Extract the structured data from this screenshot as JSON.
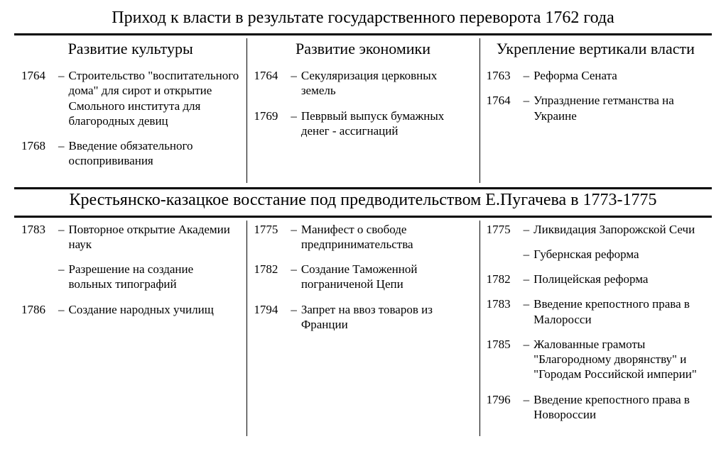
{
  "section1": {
    "title": "Приход к власти в результате государственного переворота 1762 года"
  },
  "section2": {
    "title": "Крестьянско-казацкое восстание под предводительством Е.Пугачева в 1773-1775"
  },
  "cols": {
    "culture": {
      "head": "Развитие культуры"
    },
    "economy": {
      "head": "Развитие экономики"
    },
    "power": {
      "head": "Укрепление вертикали власти"
    }
  },
  "s1": {
    "culture": [
      {
        "year": "1764",
        "text": "Строительство \"воспитательного дома\" для сирот и открытие Смольного института для благородных девиц"
      },
      {
        "year": "1768",
        "text": "Введение обязательного оспопрививания"
      }
    ],
    "economy": [
      {
        "year": "1764",
        "text": "Секуляризация церковных земель"
      },
      {
        "year": "1769",
        "text": "Певрвый выпуск бумажных денег - ассигнаций"
      }
    ],
    "power": [
      {
        "year": "1763",
        "text": "Реформа Сената"
      },
      {
        "year": "1764",
        "text": "Упразднение гетманства на Украине"
      }
    ]
  },
  "s2": {
    "culture": [
      {
        "year": "1783",
        "text": "Повторное открытие Академии наук"
      },
      {
        "year": "",
        "text": "Разрешение на создание вольных типографий"
      },
      {
        "year": "1786",
        "text": "Создание народных училищ"
      }
    ],
    "economy": [
      {
        "year": "1775",
        "text": "Манифест о свободе предпринимательства"
      },
      {
        "year": "1782",
        "text": "Создание Таможенной пограниченой Цепи"
      },
      {
        "year": "1794",
        "text": "Запрет на ввоз товаров из Франции"
      }
    ],
    "power": [
      {
        "year": "1775",
        "text": "Ликвидация Запорожской Сечи"
      },
      {
        "year": "",
        "text": "Губернская реформа"
      },
      {
        "year": "1782",
        "text": "Полицейская реформа"
      },
      {
        "year": "1783",
        "text": "Введение крепостного права в Малоросси"
      },
      {
        "year": "1785",
        "text": "Жалованные грамоты \"Благородному дворянству\" и \"Городам Российской империи\""
      },
      {
        "year": "1796",
        "text": "Введение крепостного права в Новороссии"
      }
    ]
  }
}
